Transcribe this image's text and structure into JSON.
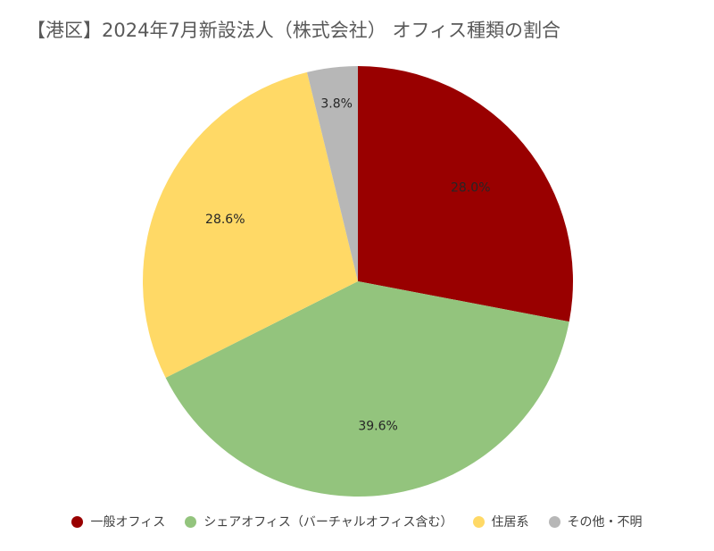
{
  "chart_data": {
    "type": "pie",
    "title": "【港区】2024年7月新設法人（株式会社） オフィス種類の割合",
    "categories": [
      "一般オフィス",
      "シェアオフィス（バーチャルオフィス含む）",
      "住居系",
      "その他・不明"
    ],
    "values": [
      28.0,
      39.6,
      28.6,
      3.8
    ],
    "value_labels": [
      "28.0%",
      "39.6%",
      "28.6%",
      "3.8%"
    ],
    "colors": [
      "#990000",
      "#93C47D",
      "#FFD966",
      "#B7B7B7"
    ],
    "start_angle": "12 o'clock",
    "direction": "clockwise",
    "legend_position": "bottom"
  }
}
